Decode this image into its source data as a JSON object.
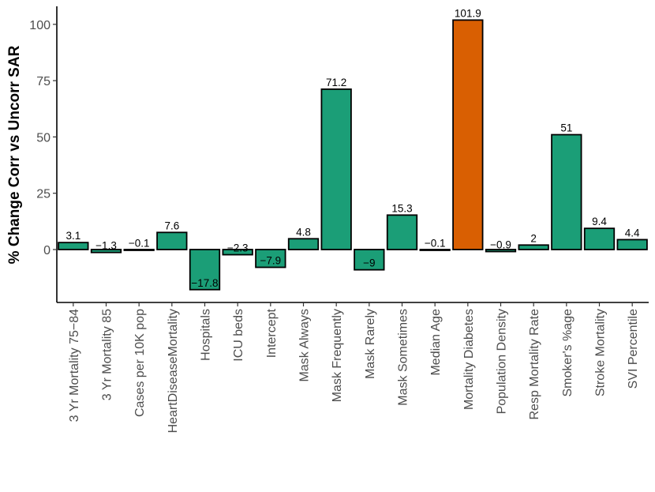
{
  "chart_data": {
    "type": "bar",
    "title": "",
    "xlabel": "",
    "ylabel": "% Change Corr vs Uncorr SAR",
    "ylim": [
      -23.5,
      108
    ],
    "yticks": [
      0,
      25,
      50,
      75,
      100
    ],
    "grid": false,
    "legend": "none",
    "categories": [
      "3 Yr Mortality 75−84",
      "3 Yr Mortality 85",
      "Cases per 10K pop",
      "HeartDiseaseMortality",
      "Hospitals",
      "ICU beds",
      "Intercept",
      "Mask Always",
      "Mask Frequently",
      "Mask Rarely",
      "Mask Sometimes",
      "Median Age",
      "Mortality Diabetes",
      "Population Density",
      "Resp Mortality Rate",
      "Smoker's %age",
      "Stroke Mortality",
      "SVI Percentile"
    ],
    "values": [
      3.1,
      -1.3,
      -0.1,
      7.6,
      -17.8,
      -2.3,
      -7.9,
      4.8,
      71.2,
      -9,
      15.3,
      -0.1,
      101.9,
      -0.9,
      2,
      51,
      9.4,
      4.4
    ],
    "data_labels": [
      "3.1",
      "−1.3",
      "−0.1",
      "7.6",
      "−17.8",
      "−2.3",
      "−7.9",
      "4.8",
      "71.2",
      "−9",
      "15.3",
      "−0.1",
      "101.9",
      "−0.9",
      "2",
      "51",
      "9.4",
      "4.4"
    ],
    "highlight_index": 12,
    "colors": {
      "default": "#1b9e77",
      "highlight": "#d95f02",
      "outline": "#000000"
    }
  }
}
